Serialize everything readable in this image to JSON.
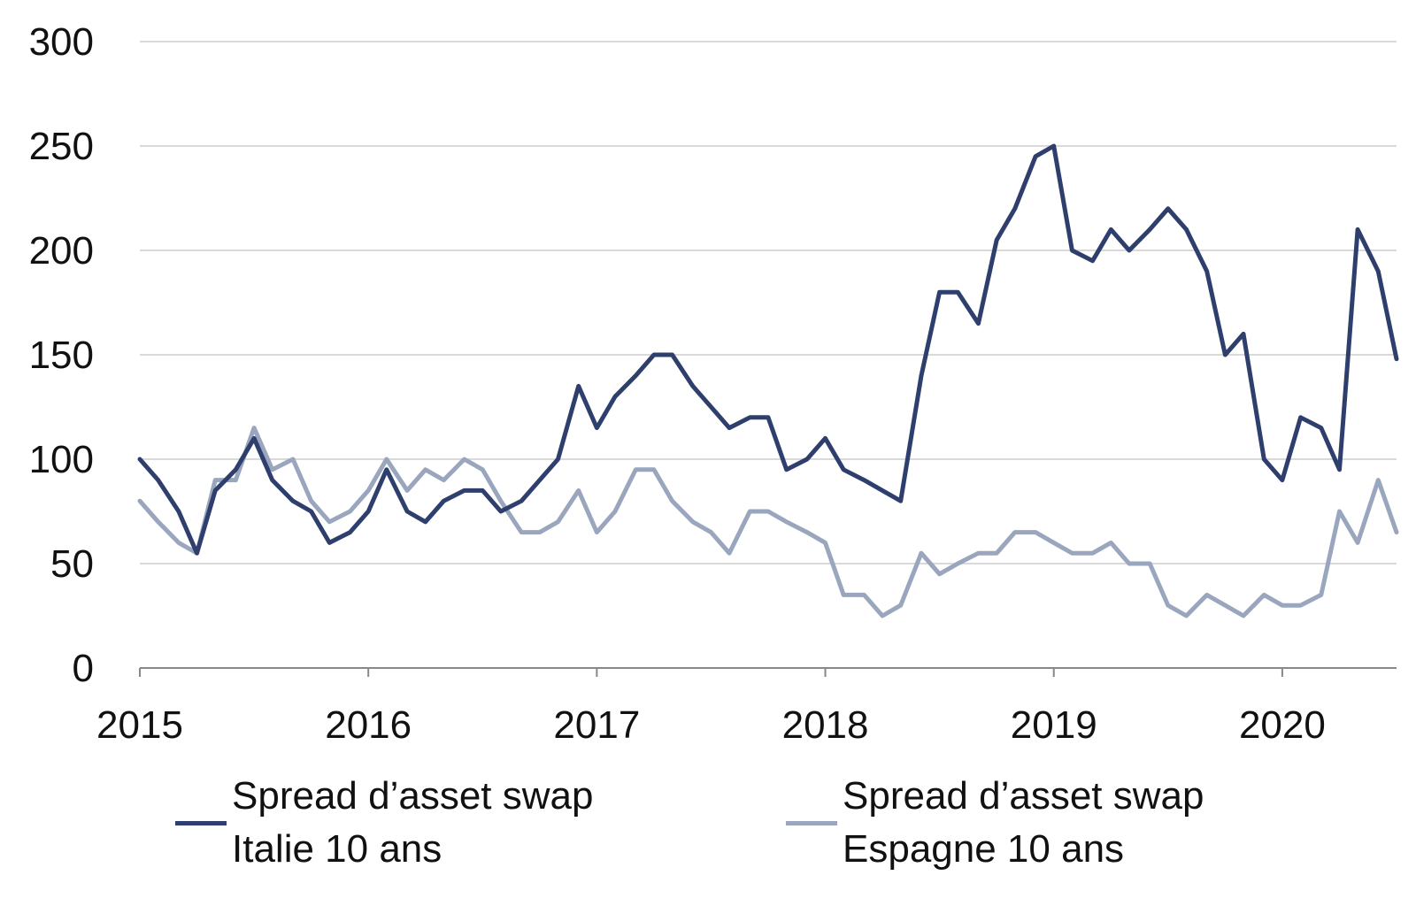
{
  "chart_data": {
    "type": "line",
    "title": "",
    "xlabel": "",
    "ylabel": "",
    "ylim": [
      0,
      300
    ],
    "yticks": [
      0,
      50,
      100,
      150,
      200,
      250,
      300
    ],
    "xlim": [
      2015.0,
      2020.5
    ],
    "xticks": [
      "2015",
      "2016",
      "2017",
      "2018",
      "2019",
      "2020"
    ],
    "grid": "horizontal",
    "legend_position": "bottom",
    "x": [
      2015.0,
      2015.08,
      2015.17,
      2015.25,
      2015.33,
      2015.42,
      2015.5,
      2015.58,
      2015.67,
      2015.75,
      2015.83,
      2015.92,
      2016.0,
      2016.08,
      2016.17,
      2016.25,
      2016.33,
      2016.42,
      2016.5,
      2016.58,
      2016.67,
      2016.75,
      2016.83,
      2016.92,
      2017.0,
      2017.08,
      2017.17,
      2017.25,
      2017.33,
      2017.42,
      2017.5,
      2017.58,
      2017.67,
      2017.75,
      2017.83,
      2017.92,
      2018.0,
      2018.08,
      2018.17,
      2018.25,
      2018.33,
      2018.42,
      2018.5,
      2018.58,
      2018.67,
      2018.75,
      2018.83,
      2018.92,
      2019.0,
      2019.08,
      2019.17,
      2019.25,
      2019.33,
      2019.42,
      2019.5,
      2019.58,
      2019.67,
      2019.75,
      2019.83,
      2019.92,
      2020.0,
      2020.08,
      2020.17,
      2020.25,
      2020.33,
      2020.42,
      2020.5
    ],
    "series": [
      {
        "name": "Spread d’asset swap Italie 10 ans",
        "color": "#2e3f6e",
        "values": [
          100,
          90,
          75,
          55,
          85,
          95,
          110,
          90,
          80,
          75,
          60,
          65,
          75,
          95,
          75,
          70,
          80,
          85,
          85,
          75,
          80,
          90,
          100,
          135,
          115,
          130,
          140,
          150,
          150,
          135,
          125,
          115,
          120,
          120,
          95,
          100,
          110,
          95,
          90,
          85,
          80,
          140,
          180,
          180,
          165,
          205,
          220,
          245,
          250,
          200,
          195,
          210,
          200,
          210,
          220,
          210,
          190,
          150,
          160,
          100,
          90,
          120,
          115,
          95,
          210,
          190,
          148
        ]
      },
      {
        "name": "Spread d’asset swap Espagne 10 ans",
        "color": "#9aa6bd",
        "values": [
          80,
          70,
          60,
          55,
          90,
          90,
          115,
          95,
          100,
          80,
          70,
          75,
          85,
          100,
          85,
          95,
          90,
          100,
          95,
          80,
          65,
          65,
          70,
          85,
          65,
          75,
          95,
          95,
          80,
          70,
          65,
          55,
          75,
          75,
          70,
          65,
          60,
          35,
          35,
          25,
          30,
          55,
          45,
          50,
          55,
          55,
          65,
          65,
          60,
          55,
          55,
          60,
          50,
          50,
          30,
          25,
          35,
          30,
          25,
          35,
          30,
          30,
          35,
          75,
          60,
          90,
          65
        ]
      }
    ]
  },
  "legend": {
    "items": [
      {
        "label": "Spread d’asset swap Italie 10 ans",
        "color": "#2e3f6e"
      },
      {
        "label": "Spread d’asset swap Espagne 10 ans",
        "color": "#9aa6bd"
      }
    ]
  }
}
